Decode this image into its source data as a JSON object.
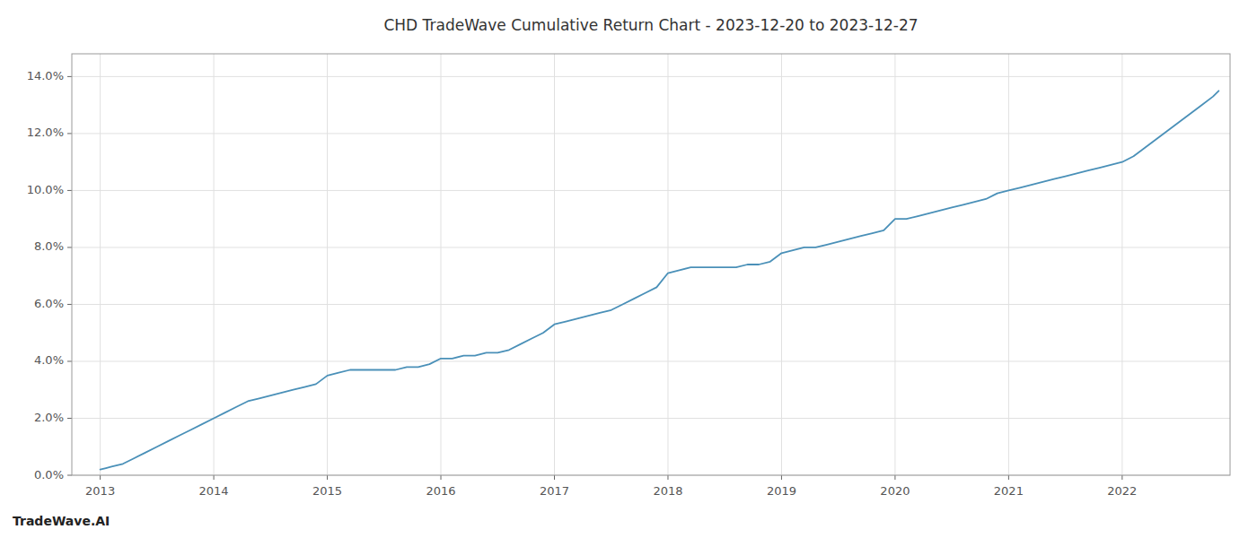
{
  "chart_data": {
    "type": "line",
    "title": "CHD TradeWave Cumulative Return Chart - 2023-12-20 to 2023-12-27",
    "annotations": [
      "TradeWave.AI"
    ],
    "color": "#4a90b8",
    "grid": true,
    "x": [
      2013.0,
      2013.05,
      2013.1,
      2013.2,
      2013.3,
      2013.4,
      2013.5,
      2013.6,
      2013.7,
      2013.8,
      2013.9,
      2014.0,
      2014.1,
      2014.2,
      2014.3,
      2014.4,
      2014.5,
      2014.6,
      2014.7,
      2014.8,
      2014.9,
      2015.0,
      2015.1,
      2015.2,
      2015.3,
      2015.4,
      2015.5,
      2015.6,
      2015.7,
      2015.8,
      2015.9,
      2016.0,
      2016.1,
      2016.2,
      2016.3,
      2016.4,
      2016.5,
      2016.6,
      2016.7,
      2016.8,
      2016.9,
      2017.0,
      2017.1,
      2017.2,
      2017.3,
      2017.4,
      2017.5,
      2017.6,
      2017.7,
      2017.8,
      2017.9,
      2018.0,
      2018.1,
      2018.2,
      2018.3,
      2018.4,
      2018.5,
      2018.6,
      2018.7,
      2018.8,
      2018.9,
      2019.0,
      2019.1,
      2019.2,
      2019.3,
      2019.4,
      2019.5,
      2019.6,
      2019.7,
      2019.8,
      2019.9,
      2020.0,
      2020.1,
      2020.2,
      2020.3,
      2020.4,
      2020.5,
      2020.6,
      2020.7,
      2020.8,
      2020.9,
      2021.0,
      2021.1,
      2021.2,
      2021.3,
      2021.4,
      2021.5,
      2021.6,
      2021.7,
      2021.8,
      2021.9,
      2022.0,
      2022.1,
      2022.2,
      2022.3,
      2022.4,
      2022.5,
      2022.6,
      2022.7,
      2022.8,
      2022.85
    ],
    "values": [
      0.002,
      0.0025,
      0.003,
      0.004,
      0.006,
      0.008,
      0.01,
      0.012,
      0.014,
      0.016,
      0.018,
      0.02,
      0.022,
      0.024,
      0.026,
      0.027,
      0.028,
      0.029,
      0.03,
      0.031,
      0.032,
      0.035,
      0.036,
      0.037,
      0.037,
      0.037,
      0.037,
      0.037,
      0.038,
      0.038,
      0.039,
      0.041,
      0.041,
      0.042,
      0.042,
      0.043,
      0.043,
      0.044,
      0.046,
      0.048,
      0.05,
      0.053,
      0.054,
      0.055,
      0.056,
      0.057,
      0.058,
      0.06,
      0.062,
      0.064,
      0.066,
      0.071,
      0.072,
      0.073,
      0.073,
      0.073,
      0.073,
      0.073,
      0.074,
      0.074,
      0.075,
      0.078,
      0.079,
      0.08,
      0.08,
      0.081,
      0.082,
      0.083,
      0.084,
      0.085,
      0.086,
      0.09,
      0.09,
      0.091,
      0.092,
      0.093,
      0.094,
      0.095,
      0.096,
      0.097,
      0.099,
      0.1,
      0.101,
      0.102,
      0.103,
      0.104,
      0.105,
      0.106,
      0.107,
      0.108,
      0.109,
      0.11,
      0.112,
      0.115,
      0.118,
      0.121,
      0.124,
      0.127,
      0.13,
      0.133,
      0.135
    ],
    "xlim": [
      2012.75,
      2022.95
    ],
    "xticks": [
      2013,
      2014,
      2015,
      2016,
      2017,
      2018,
      2019,
      2020,
      2021,
      2022
    ],
    "ylim": [
      0,
      0.148
    ],
    "yticks": [
      {
        "value": 0.0,
        "label": "0.0%"
      },
      {
        "value": 0.02,
        "label": "2.0%"
      },
      {
        "value": 0.04,
        "label": "4.0%"
      },
      {
        "value": 0.06,
        "label": "6.0%"
      },
      {
        "value": 0.08,
        "label": "8.0%"
      },
      {
        "value": 0.1,
        "label": "10.0%"
      },
      {
        "value": 0.12,
        "label": "12.0%"
      },
      {
        "value": 0.14,
        "label": "14.0%"
      }
    ]
  }
}
